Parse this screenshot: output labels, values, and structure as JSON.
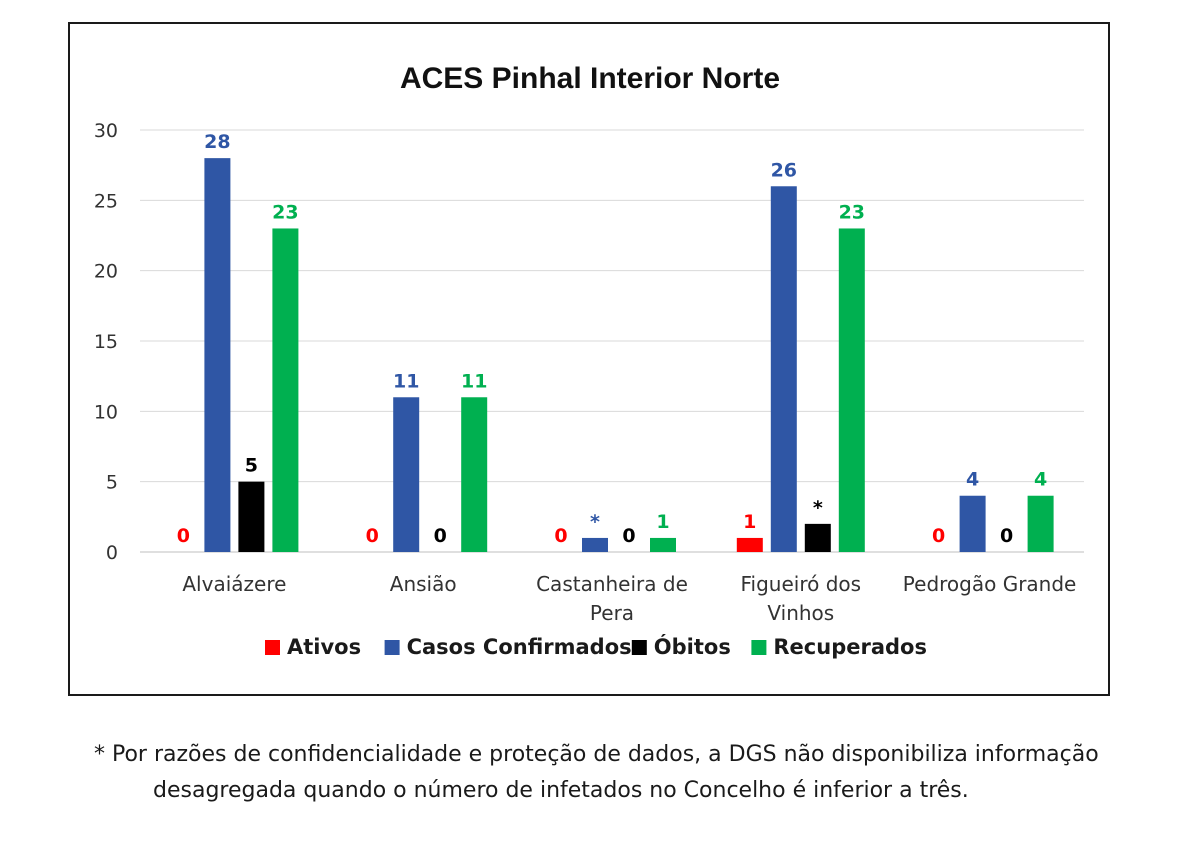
{
  "chart_data": {
    "type": "bar",
    "title": "ACES Pinhal Interior Norte",
    "categories": [
      [
        "Alvaiázere"
      ],
      [
        "Ansião"
      ],
      [
        "Castanheira de",
        "Pera"
      ],
      [
        "Figueiró dos",
        "Vinhos"
      ],
      [
        "Pedrogão Grande"
      ]
    ],
    "ylim": [
      0,
      30
    ],
    "yticks": [
      "0",
      "5",
      "10",
      "15",
      "20",
      "25",
      "30"
    ],
    "grid": true,
    "legend_position": "bottom",
    "series": [
      {
        "name": "Ativos",
        "color": "#ff0000",
        "label_color": "#ff0000",
        "values": [
          0,
          0,
          0,
          1,
          0
        ],
        "labels": [
          "0",
          "0",
          "0",
          "1",
          "0"
        ]
      },
      {
        "name": "Casos Confirmados",
        "color": "#2f56a5",
        "label_color": "#2f56a5",
        "values": [
          28,
          11,
          1,
          26,
          4
        ],
        "labels": [
          "28",
          "11",
          "*",
          "26",
          "4"
        ]
      },
      {
        "name": "Óbitos",
        "color": "#000000",
        "label_color": "#000000",
        "values": [
          5,
          0,
          0,
          2,
          0
        ],
        "labels": [
          "5",
          "0",
          "0",
          "*",
          "0"
        ]
      },
      {
        "name": "Recuperados",
        "color": "#00b050",
        "label_color": "#00b050",
        "values": [
          23,
          11,
          1,
          23,
          4
        ],
        "labels": [
          "23",
          "11",
          "1",
          "23",
          "4"
        ]
      }
    ]
  },
  "footnote": {
    "line1": "* Por razões de confidencialidade e proteção de dados, a DGS não disponibiliza informação",
    "line2": "desagregada quando o número de infetados no Concelho é inferior a três."
  }
}
